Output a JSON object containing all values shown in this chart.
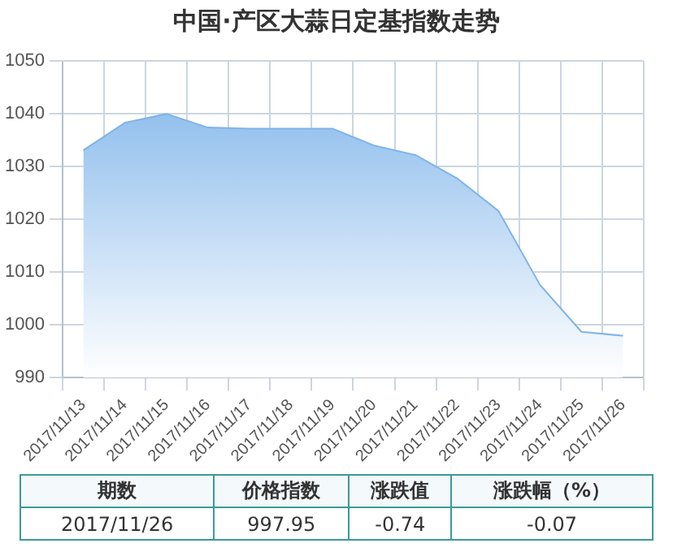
{
  "chart_data": {
    "type": "area",
    "title": "中国·产区大蒜日定基指数走势",
    "categories": [
      "2017/11/13",
      "2017/11/14",
      "2017/11/15",
      "2017/11/16",
      "2017/11/17",
      "2017/11/18",
      "2017/11/19",
      "2017/11/20",
      "2017/11/21",
      "2017/11/22",
      "2017/11/23",
      "2017/11/24",
      "2017/11/25",
      "2017/11/26"
    ],
    "series": [
      {
        "color": "#7eb4ea",
        "values": [
          1033.1,
          1038.3,
          1040,
          1037.4,
          1037.2,
          1037.2,
          1037.2,
          1034,
          1032.2,
          1027.8,
          1021.6,
          1007.6,
          998.7,
          997.95
        ]
      }
    ],
    "ylim": [
      990,
      1050
    ],
    "yticks": [
      990,
      1000,
      1010,
      1020,
      1030,
      1040,
      1050
    ],
    "grid": true,
    "annotations": [
      "期数",
      "价格指数",
      "涨跌值",
      "涨跌幅（%）",
      "2017/11/26",
      "997.95",
      "-0.74",
      "-0.07"
    ]
  }
}
